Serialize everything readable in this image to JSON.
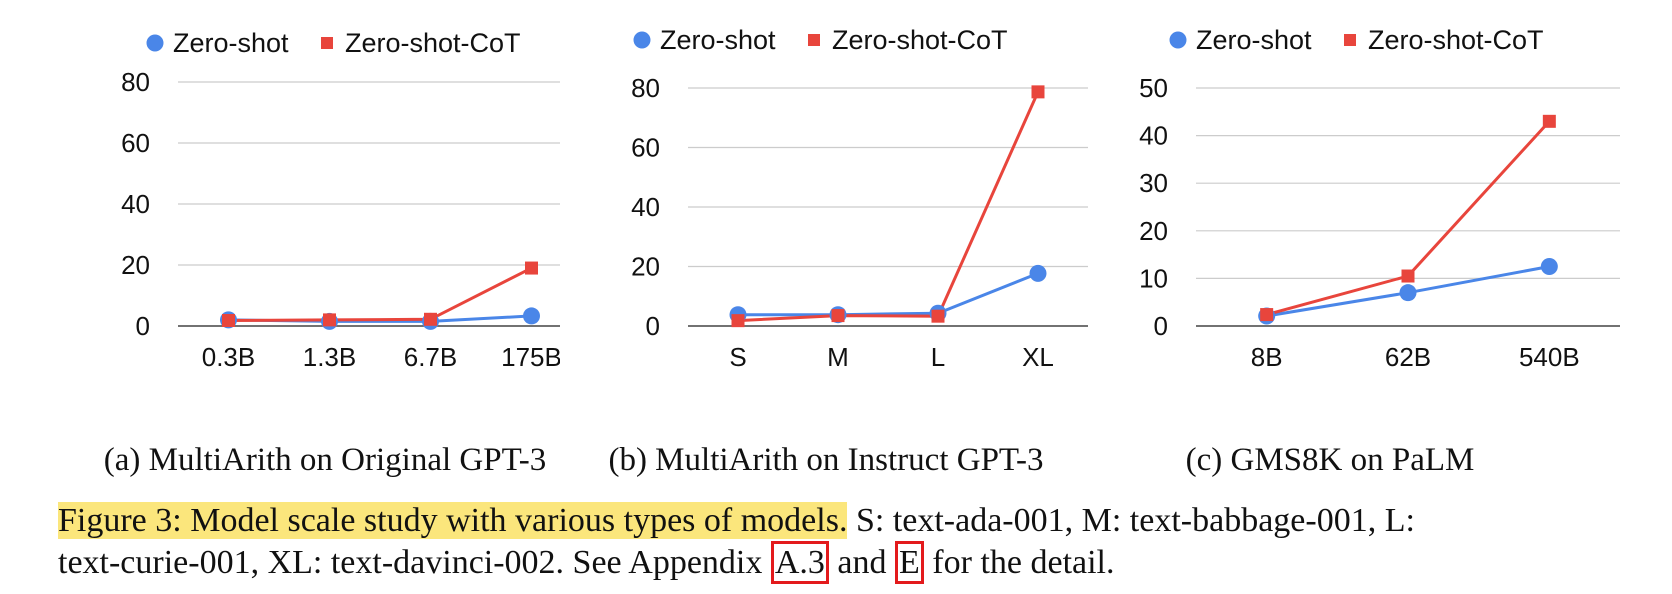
{
  "chart_data": [
    {
      "type": "line",
      "categories": [
        "0.3B",
        "1.3B",
        "6.7B",
        "175B"
      ],
      "series": [
        {
          "name": "Zero-shot",
          "color": "#4a86e8",
          "marker": "circle",
          "values": [
            2.0,
            1.5,
            1.5,
            3.3
          ]
        },
        {
          "name": "Zero-shot-CoT",
          "color": "#e8453c",
          "marker": "square",
          "values": [
            1.8,
            2.0,
            2.2,
            19.0
          ]
        }
      ],
      "yticks": [
        0,
        20,
        40,
        60,
        80
      ],
      "ylim": [
        0,
        80
      ],
      "grid": true,
      "legend": "top",
      "caption": "(a) MultiArith on Original GPT-3"
    },
    {
      "type": "line",
      "categories": [
        "S",
        "M",
        "L",
        "XL"
      ],
      "series": [
        {
          "name": "Zero-shot",
          "color": "#4a86e8",
          "marker": "circle",
          "values": [
            3.8,
            3.8,
            4.3,
            17.7
          ]
        },
        {
          "name": "Zero-shot-CoT",
          "color": "#e8453c",
          "marker": "square",
          "values": [
            1.8,
            3.5,
            3.3,
            78.7
          ]
        }
      ],
      "yticks": [
        0,
        20,
        40,
        60,
        80
      ],
      "ylim": [
        0,
        80
      ],
      "grid": true,
      "legend": "top",
      "caption": "(b) MultiArith on Instruct GPT-3"
    },
    {
      "type": "line",
      "categories": [
        "8B",
        "62B",
        "540B"
      ],
      "series": [
        {
          "name": "Zero-shot",
          "color": "#4a86e8",
          "marker": "circle",
          "values": [
            2.1,
            7.0,
            12.5
          ]
        },
        {
          "name": "Zero-shot-CoT",
          "color": "#e8453c",
          "marker": "square",
          "values": [
            2.4,
            10.5,
            43.0
          ]
        }
      ],
      "yticks": [
        0,
        10,
        20,
        30,
        40,
        50
      ],
      "ylim": [
        0,
        50
      ],
      "grid": true,
      "legend": "top",
      "caption": "(c) GMS8K on PaLM"
    }
  ],
  "figure_caption": {
    "highlighted": "Figure 3: Model scale study with various types of models.",
    "rest_line1": " S: text-ada-001, M: text-babbage-001, L:",
    "line2_pre": "text-curie-001, XL: text-davinci-002. See Appendix ",
    "ref1": "A.3",
    "mid": " and ",
    "ref2": "E",
    "line2_post": " for the detail."
  }
}
